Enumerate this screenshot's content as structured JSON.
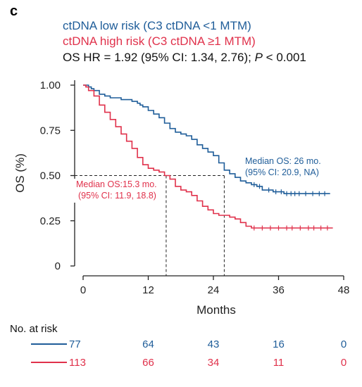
{
  "panel_label": "c",
  "chart_data": {
    "type": "line",
    "subtype": "kaplan-meier",
    "xlabel": "Months",
    "ylabel": "OS (%)",
    "xlim": [
      0,
      48
    ],
    "ylim": [
      0,
      1
    ],
    "x_ticks": [
      "0",
      "12",
      "24",
      "36",
      "48"
    ],
    "x_tick_values": [
      0,
      12,
      24,
      36,
      48
    ],
    "y_ticks": [
      "0",
      "0.25",
      "0.50",
      "0.75",
      "1.00"
    ],
    "y_tick_values": [
      0,
      0.25,
      0.5,
      0.75,
      1.0
    ],
    "grid": false,
    "legend": {
      "placement": "top-left",
      "entries": [
        {
          "text": "ctDNA low risk (C3 ctDNA <1 MTM)",
          "color": "#1f5d99"
        },
        {
          "text": "ctDNA high risk (C3 ctDNA ≥1 MTM)",
          "color": "#e0314b"
        }
      ],
      "hr_prefix": "OS HR = 1.92 (95% CI: 1.34, 2.76); ",
      "hr_p_symbol": "P",
      "hr_p_value": " < 0.001"
    },
    "series": [
      {
        "name": "ctDNA low risk (C3 ctDNA <1 MTM)",
        "color": "#1f5d99",
        "x": [
          0,
          0.5,
          1,
          1.5,
          2,
          3,
          4,
          5,
          6,
          7,
          8,
          9,
          10,
          10.5,
          11,
          12,
          13,
          14,
          15,
          16,
          17,
          18,
          19,
          20,
          21,
          22,
          23,
          24,
          25,
          26,
          27,
          28,
          29,
          30,
          31,
          32,
          33,
          34,
          35,
          36,
          37,
          38,
          39,
          40,
          41,
          42,
          43,
          44,
          45.5
        ],
        "y": [
          1.0,
          1.0,
          0.99,
          0.98,
          0.97,
          0.95,
          0.94,
          0.93,
          0.93,
          0.92,
          0.92,
          0.91,
          0.9,
          0.89,
          0.88,
          0.86,
          0.84,
          0.82,
          0.79,
          0.76,
          0.74,
          0.73,
          0.72,
          0.7,
          0.67,
          0.65,
          0.63,
          0.61,
          0.57,
          0.53,
          0.51,
          0.49,
          0.47,
          0.46,
          0.45,
          0.44,
          0.42,
          0.42,
          0.41,
          0.41,
          0.4,
          0.4,
          0.4,
          0.4,
          0.4,
          0.4,
          0.4,
          0.4,
          0.4
        ],
        "median_os_label": "Median OS: 26 mo.",
        "median_ci_label": "(95% CI: 20.9, NA)",
        "median_months": 26,
        "censor_x": [
          31.5,
          32.5,
          34.2,
          35.5,
          36.5,
          37.5,
          38.3,
          39.0,
          39.8,
          41.0,
          42.3,
          43.5,
          44.5
        ]
      },
      {
        "name": "ctDNA high risk (C3 ctDNA ≥1 MTM)",
        "color": "#e0314b",
        "x": [
          0,
          0.5,
          1,
          2,
          3,
          4,
          5,
          6,
          7,
          8,
          9,
          10,
          11,
          12,
          13,
          14,
          15,
          16,
          17,
          18,
          19,
          20,
          21,
          22,
          23,
          24,
          25,
          26,
          27,
          28,
          29,
          30,
          31,
          32,
          33,
          34,
          36,
          38,
          40,
          42,
          44,
          46
        ],
        "y": [
          1.0,
          0.99,
          0.97,
          0.94,
          0.89,
          0.85,
          0.81,
          0.77,
          0.73,
          0.69,
          0.65,
          0.6,
          0.56,
          0.54,
          0.53,
          0.52,
          0.5,
          0.48,
          0.44,
          0.42,
          0.41,
          0.39,
          0.36,
          0.33,
          0.31,
          0.29,
          0.28,
          0.28,
          0.27,
          0.26,
          0.24,
          0.22,
          0.21,
          0.21,
          0.21,
          0.21,
          0.21,
          0.21,
          0.21,
          0.21,
          0.21,
          0.21
        ],
        "median_os_label": "Median OS:15.3 mo.",
        "median_ci_label": "(95% CI: 11.9, 18.8)",
        "median_months": 15.3,
        "censor_x": [
          31.5,
          33.0,
          34.5,
          36.0,
          37.5,
          38.5,
          40.0,
          41.5,
          42.5,
          43.8,
          45.0
        ]
      }
    ],
    "number_at_risk": {
      "title": "No. at risk",
      "timepoints": [
        0,
        12,
        24,
        36,
        48
      ],
      "rows": [
        {
          "color": "#1f5d99",
          "values": [
            "77",
            "64",
            "43",
            "16",
            "0"
          ]
        },
        {
          "color": "#e0314b",
          "values": [
            "113",
            "66",
            "34",
            "11",
            "0"
          ]
        }
      ]
    }
  }
}
